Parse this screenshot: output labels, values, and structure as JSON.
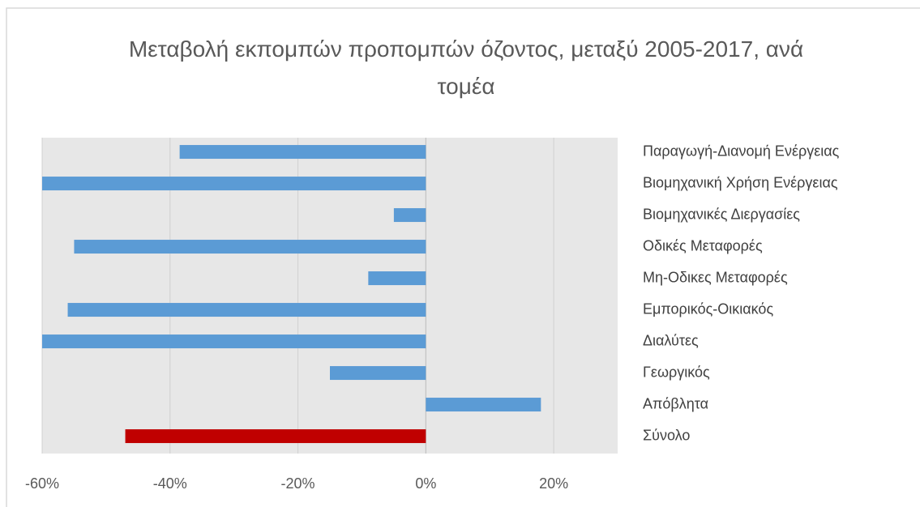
{
  "chart_data": {
    "type": "barh",
    "title": "Μεταβολή εκπομπών προπομπών όζοντος, μεταξύ 2005-2017, ανά τομέα",
    "categories": [
      "Παραγωγή-Διανομή Ενέργειας",
      "Βιομηχανική Χρήση Ενέργειας",
      "Βιομηχανικές Διεργασίες",
      "Οδικές Μεταφορές",
      "Μη-Οδικες Μεταφορές",
      "Εμπορικός-Οικιακός",
      "Διαλύτες",
      "Γεωργικός",
      "Απόβλητα",
      "Σύνολο"
    ],
    "values": [
      -38.5,
      -60,
      -5,
      -55,
      -9,
      -56,
      -60,
      -15,
      18,
      -47
    ],
    "colors": [
      "#5b9bd5",
      "#5b9bd5",
      "#5b9bd5",
      "#5b9bd5",
      "#5b9bd5",
      "#5b9bd5",
      "#5b9bd5",
      "#5b9bd5",
      "#5b9bd5",
      "#c00000"
    ],
    "xlim": [
      -60,
      30
    ],
    "xticks": [
      {
        "value": -60,
        "label": "-60%"
      },
      {
        "value": -40,
        "label": "-40%"
      },
      {
        "value": -20,
        "label": "-20%"
      },
      {
        "value": 0,
        "label": "0%"
      },
      {
        "value": 20,
        "label": "20%"
      }
    ],
    "grid": true
  }
}
